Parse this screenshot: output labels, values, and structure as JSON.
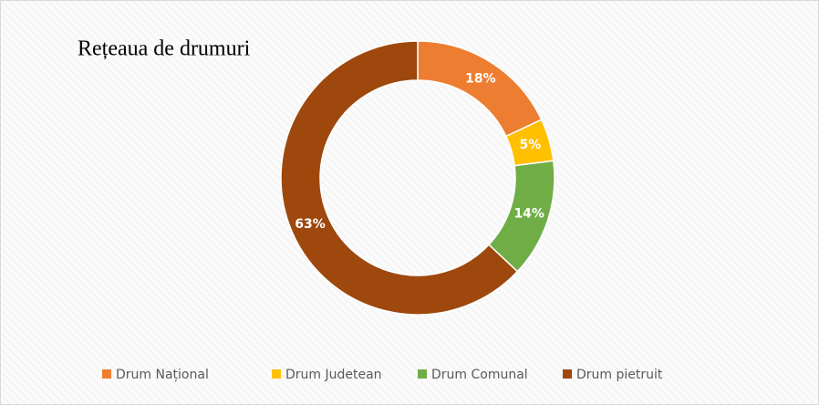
{
  "chart_data": {
    "type": "donut",
    "title": "Rețeaua de drumuri",
    "categories": [
      "Drum Național",
      "Drum Judetean",
      "Drum Comunal",
      "Drum pietruit"
    ],
    "values": [
      18,
      5,
      14,
      63
    ],
    "value_labels": [
      "18%",
      "5%",
      "14%",
      "63%"
    ],
    "colors": [
      "#ED7D31",
      "#FFC000",
      "#70AD47",
      "#9E480E"
    ],
    "legend": "bottom"
  }
}
